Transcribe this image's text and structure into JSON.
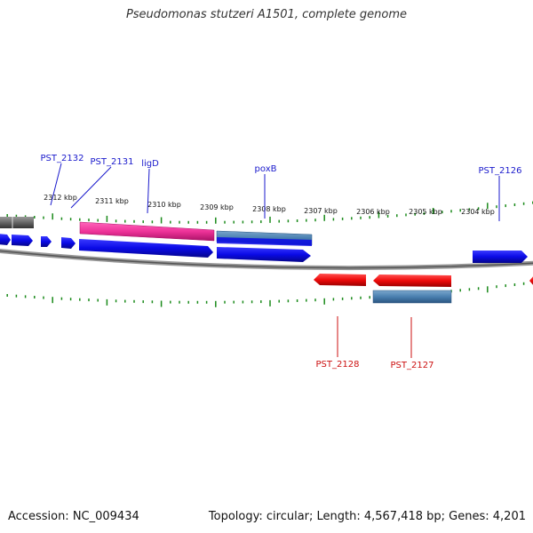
{
  "title": "Pseudomonas stutzeri A1501, complete genome",
  "footer": {
    "accession": "Accession: NC_009434",
    "summary": "Topology: circular; Length: 4,567,418 bp; Genes: 4,201"
  },
  "scale_labels": [
    "2312 kbp",
    "2311 kbp",
    "2310 kbp",
    "2309 kbp",
    "2308 kbp",
    "2307 kbp",
    "2306 kbp",
    "2305 kbp",
    "2304 kbp"
  ],
  "gene_labels_top": [
    "PST_2132",
    "PST_2131",
    "ligD",
    "poxB",
    "PST_2126"
  ],
  "gene_labels_bottom": [
    "PST_2128",
    "PST_2127"
  ],
  "colors": {
    "forward_gene": "#0a0ae6",
    "reverse_gene": "#ee0a0a",
    "pink_feature": "#ee3399",
    "steel_feature": "#4a80b0",
    "label_blue": "#1a1acc",
    "label_red": "#cc1111",
    "tick_green": "#1a8a1a",
    "backbone": "#777777"
  }
}
